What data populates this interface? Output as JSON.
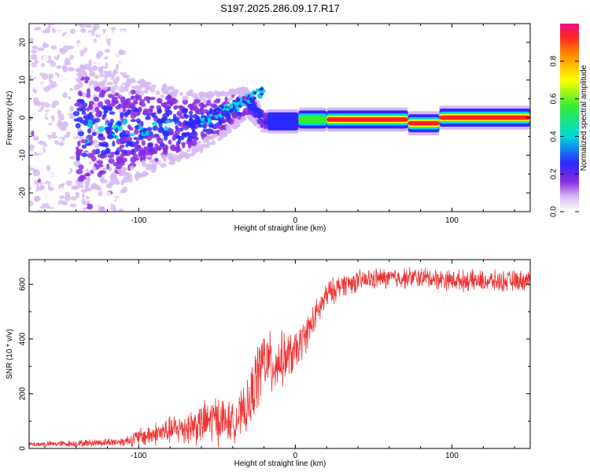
{
  "title": "S197.2025.286.09.17.R17",
  "chart_data": [
    {
      "type": "heatmap",
      "xlabel": "Height of straight line (km)",
      "ylabel": "Frequency (Hz)",
      "xlim": [
        -170,
        150
      ],
      "ylim": [
        -25,
        25
      ],
      "xticks": [
        -100,
        0,
        100
      ],
      "xtick_labels": [
        "-100",
        "0",
        "100"
      ],
      "yticks": [
        -20,
        -10,
        0,
        10,
        20
      ],
      "ytick_labels": [
        "-20",
        "-10",
        "0",
        "10",
        "20"
      ],
      "ridge": [
        {
          "x": -120,
          "y": -3
        },
        {
          "x": -100,
          "y": -3
        },
        {
          "x": -80,
          "y": -2
        },
        {
          "x": -60,
          "y": -1
        },
        {
          "x": -45,
          "y": 1
        },
        {
          "x": -30,
          "y": 4
        },
        {
          "x": -20,
          "y": -1
        },
        {
          "x": 0,
          "y": -0.5
        },
        {
          "x": 40,
          "y": -0.5
        },
        {
          "x": 70,
          "y": -1
        },
        {
          "x": 90,
          "y": -1.5
        },
        {
          "x": 150,
          "y": 0
        }
      ],
      "colorbar": {
        "label": "Normalized spectral amplitude",
        "ticks": [
          0.0,
          0.2,
          0.4,
          0.6,
          0.8
        ],
        "tick_labels": [
          "0.0",
          "0.2",
          "0.4",
          "0.6",
          "0.8"
        ],
        "range": [
          0,
          1
        ]
      }
    },
    {
      "type": "line",
      "xlabel": "Height of straight line (km)",
      "ylabel": "SNR (10 * v/v)",
      "xlim": [
        -170,
        150
      ],
      "ylim": [
        0,
        690
      ],
      "xticks": [
        -100,
        0,
        100
      ],
      "xtick_labels": [
        "-100",
        "0",
        "100"
      ],
      "yticks": [
        0,
        200,
        400,
        600
      ],
      "ytick_labels": [
        "0",
        "200",
        "400",
        "600"
      ],
      "series": [
        {
          "name": "SNR",
          "color": "#ee3333",
          "envelope": {
            "x": [
              -170,
              -140,
              -110,
              -100,
              -80,
              -60,
              -50,
              -40,
              -30,
              -25,
              -20,
              -15,
              -10,
              0,
              10,
              20,
              30,
              50,
              80,
              100,
              130,
              150
            ],
            "mean": [
              15,
              18,
              25,
              40,
              65,
              90,
              110,
              95,
              150,
              250,
              330,
              300,
              320,
              350,
              450,
              560,
              600,
              620,
              625,
              615,
              610,
              615
            ],
            "amplitude": [
              10,
              15,
              20,
              40,
              60,
              90,
              110,
              80,
              110,
              150,
              150,
              130,
              120,
              90,
              70,
              60,
              50,
              45,
              45,
              45,
              45,
              45
            ]
          }
        }
      ]
    }
  ]
}
